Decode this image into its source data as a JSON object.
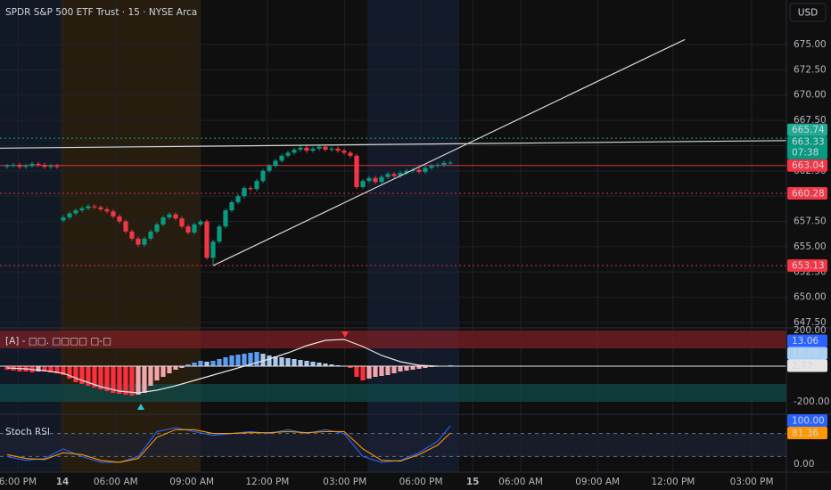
{
  "chart_data": [
    {
      "type": "candlestick",
      "title": "SPDR S&P 500 ETF Trust · 15 · NYSE Arca",
      "currency": "USD",
      "open": [
        662.9,
        663.0,
        663.1,
        662.9,
        663.0,
        663.2,
        663.1,
        662.9,
        663.0,
        657.6,
        657.9,
        658.3,
        658.6,
        658.8,
        659.0,
        658.9,
        658.7,
        658.5,
        658.0,
        657.5,
        656.5,
        655.8,
        655.2,
        655.8,
        656.5,
        657.2,
        657.9,
        658.2,
        657.8,
        657.0,
        656.4,
        657.2,
        657.5,
        653.9,
        655.5,
        657.0,
        658.6,
        659.4,
        660.0,
        660.8,
        660.7,
        661.5,
        662.5,
        663.0,
        663.5,
        664.0,
        664.3,
        664.6,
        664.8,
        664.5,
        664.7,
        664.9,
        664.6,
        664.7,
        664.5,
        664.3,
        664.0,
        660.9,
        661.5,
        661.8,
        661.4,
        661.9,
        662.2,
        662.0,
        662.3,
        662.5,
        662.6,
        662.4,
        662.8,
        663.0,
        663.1,
        663.3
      ],
      "high": [
        663.2,
        663.3,
        663.3,
        663.2,
        663.4,
        663.4,
        663.3,
        663.2,
        663.2,
        658.1,
        658.5,
        658.8,
        659.0,
        659.2,
        659.2,
        659.1,
        658.9,
        658.7,
        658.2,
        657.7,
        656.7,
        656.0,
        656.0,
        656.7,
        657.4,
        658.1,
        658.4,
        658.4,
        658.0,
        657.2,
        657.4,
        657.7,
        657.7,
        655.7,
        657.2,
        658.8,
        659.6,
        660.2,
        661.0,
        661.0,
        661.7,
        662.7,
        663.2,
        663.7,
        664.2,
        664.5,
        664.8,
        665.0,
        665.0,
        664.9,
        665.1,
        665.1,
        664.9,
        664.9,
        664.7,
        664.5,
        664.2,
        661.7,
        662.0,
        662.0,
        662.1,
        662.4,
        662.4,
        662.5,
        662.7,
        662.8,
        662.8,
        663.0,
        663.2,
        663.3,
        663.5,
        663.5
      ],
      "low": [
        662.7,
        662.8,
        662.7,
        662.7,
        662.8,
        662.9,
        662.7,
        662.7,
        662.7,
        657.4,
        657.7,
        658.1,
        658.4,
        658.6,
        658.7,
        658.5,
        658.3,
        657.8,
        657.3,
        656.3,
        655.6,
        655.0,
        655.0,
        655.6,
        656.3,
        657.0,
        657.7,
        657.6,
        656.8,
        656.2,
        656.2,
        657.0,
        653.7,
        653.13,
        655.3,
        656.8,
        658.4,
        659.2,
        659.8,
        660.5,
        660.5,
        661.3,
        662.3,
        662.8,
        663.3,
        663.8,
        664.1,
        664.4,
        664.3,
        664.3,
        664.5,
        664.4,
        664.4,
        664.3,
        664.1,
        663.8,
        660.7,
        660.7,
        661.3,
        661.2,
        661.2,
        661.7,
        661.8,
        661.8,
        662.1,
        662.3,
        662.2,
        662.2,
        662.6,
        662.8,
        662.9,
        663.1
      ],
      "close": [
        663.0,
        663.1,
        662.9,
        663.0,
        663.2,
        663.1,
        662.9,
        663.0,
        662.9,
        657.9,
        658.3,
        658.6,
        658.8,
        659.0,
        658.9,
        658.7,
        658.5,
        658.0,
        657.5,
        656.5,
        655.8,
        655.2,
        655.8,
        656.5,
        657.2,
        657.9,
        658.2,
        657.8,
        657.0,
        656.4,
        657.2,
        657.5,
        653.9,
        655.5,
        657.0,
        658.6,
        659.4,
        660.0,
        660.8,
        660.7,
        661.5,
        662.5,
        663.0,
        663.5,
        664.0,
        664.3,
        664.6,
        664.8,
        664.5,
        664.7,
        664.9,
        664.6,
        664.7,
        664.5,
        664.3,
        664.0,
        660.9,
        661.5,
        661.8,
        661.4,
        661.9,
        662.2,
        662.0,
        662.3,
        662.5,
        662.6,
        662.4,
        662.8,
        663.0,
        663.1,
        663.3,
        663.33
      ],
      "up_color": "#089981",
      "down_color": "#f23645",
      "xlim": [
        -1.14,
        124.86
      ],
      "xticks": [
        {
          "value": 1.7,
          "label": "6:00 PM"
        },
        {
          "value": 8.86,
          "label": "14"
        },
        {
          "value": 17.4,
          "label": "06:00 AM"
        },
        {
          "value": 29.6,
          "label": "09:00 AM"
        },
        {
          "value": 41.7,
          "label": "12:00 PM"
        },
        {
          "value": 54.1,
          "label": "03:00 PM"
        },
        {
          "value": 66.3,
          "label": "06:00 PM"
        },
        {
          "value": 74.6,
          "label": "15"
        },
        {
          "value": 82.3,
          "label": "06:00 AM"
        },
        {
          "value": 94.6,
          "label": "09:00 AM"
        },
        {
          "value": 106.7,
          "label": "12:00 PM"
        },
        {
          "value": 119.3,
          "label": "03:00 PM"
        }
      ],
      "ylim": [
        646.97,
        679.41
      ],
      "yticks": [
        {
          "value": 647.5,
          "label": "647.50"
        },
        {
          "value": 650,
          "label": "650.00"
        },
        {
          "value": 652.5,
          "label": "652.50"
        },
        {
          "value": 655,
          "label": "655.00"
        },
        {
          "value": 657.5,
          "label": "657.50"
        },
        {
          "value": 660,
          "label": "660.00"
        },
        {
          "value": 662.5,
          "label": "662.50"
        },
        {
          "value": 665,
          "label": "665.00"
        },
        {
          "value": 667.5,
          "label": "667.50"
        },
        {
          "value": 670,
          "label": "670.00"
        },
        {
          "value": 672.5,
          "label": "672.50"
        },
        {
          "value": 675,
          "label": "675.00"
        }
      ],
      "grid": true,
      "price_tags": [
        {
          "value": 653.13,
          "color": "#f23645",
          "line": "dotted"
        },
        {
          "value": 660.28,
          "color": "#f23645",
          "line": "dotted"
        },
        {
          "value": 663.04,
          "color": "#f23645",
          "line": "solid"
        },
        {
          "value": 663.33,
          "color": "#089981",
          "sub": "07:38"
        },
        {
          "value": 665.74,
          "color": "#22ab94",
          "line": "dotted"
        }
      ],
      "trendlines": [
        {
          "x": [
            33,
            108.6
          ],
          "y": [
            653.13,
            675.5
          ]
        },
        {
          "x": [
            -1.14,
            124.86
          ],
          "y": [
            664.75,
            665.5
          ]
        }
      ]
    },
    {
      "type": "macd",
      "title": "[A] - □□. □□□□ □-□",
      "histogram": [
        -20,
        -25,
        -30,
        -30,
        -35,
        -30,
        -30,
        -35,
        -40,
        -50,
        -70,
        -90,
        -100,
        -110,
        -120,
        -130,
        -140,
        -150,
        -155,
        -160,
        -165,
        -160,
        -150,
        -110,
        -80,
        -60,
        -40,
        -20,
        -10,
        10,
        20,
        30,
        25,
        30,
        40,
        50,
        60,
        65,
        70,
        75,
        80,
        70,
        60,
        55,
        50,
        45,
        40,
        35,
        30,
        25,
        20,
        15,
        10,
        5,
        0,
        -10,
        -60,
        -80,
        -70,
        -60,
        -55,
        -50,
        -40,
        -30,
        -25,
        -20,
        -15,
        -10,
        -5,
        -3,
        0,
        5
      ],
      "colors": {
        "rise_above": "#5b9cf0",
        "fall_above": "#a9c9f0",
        "fall_below": "#ff2e3b",
        "rise_below": "#f2a5ad"
      },
      "signal": {
        "x": [
          0,
          3,
          6,
          9,
          12,
          15,
          18,
          21,
          24,
          27,
          30,
          33,
          36,
          39,
          42,
          45,
          48,
          51,
          54,
          57,
          60,
          63,
          66,
          69
        ],
        "values": [
          -10,
          -15,
          -25,
          -40,
          -80,
          -115,
          -140,
          -150,
          -135,
          -110,
          -80,
          -50,
          -20,
          10,
          40,
          75,
          115,
          145,
          150,
          110,
          60,
          25,
          5,
          0
        ],
        "color": "#e6e6e6"
      },
      "ylim": [
        -270,
        215
      ],
      "yticks": [
        {
          "value": 200,
          "label": "200.00"
        },
        {
          "value": -200,
          "label": "-200.00"
        }
      ],
      "zones": [
        {
          "from": 100,
          "to": 200,
          "color": "#7a1f24"
        },
        {
          "from": -100,
          "to": -200,
          "color": "#0f4a4a"
        }
      ],
      "tags": [
        {
          "value": 2.77,
          "color": "#e6e6e6",
          "text_color": "#000000"
        },
        {
          "value": 10.29,
          "color": "#a9d0f5",
          "text_color": "#000000"
        },
        {
          "value": 13.06,
          "color": "#2962ff",
          "text_color": "#ffffff"
        }
      ]
    },
    {
      "type": "stoch_rsi",
      "title": "Stoch RSI",
      "x": [
        0,
        3,
        6,
        9,
        12,
        15,
        18,
        21,
        24,
        27,
        30,
        33,
        36,
        39,
        42,
        45,
        48,
        51,
        54,
        57,
        60,
        63,
        66,
        69,
        71
      ],
      "series": [
        {
          "color": "#2962ff",
          "values": [
            20,
            10,
            15,
            40,
            20,
            5,
            5,
            20,
            85,
            95,
            85,
            75,
            80,
            85,
            80,
            90,
            80,
            90,
            80,
            20,
            5,
            10,
            30,
            60,
            100
          ]
        },
        {
          "color": "#ff9800",
          "values": [
            25,
            15,
            12,
            30,
            25,
            10,
            5,
            15,
            70,
            90,
            90,
            80,
            80,
            82,
            82,
            85,
            82,
            85,
            85,
            40,
            10,
            8,
            25,
            50,
            81.36
          ]
        }
      ],
      "bands": [
        20,
        80
      ],
      "ylim": [
        -20.9,
        130.2
      ],
      "yticks": [
        {
          "value": 0,
          "label": "0.00"
        }
      ],
      "tags": [
        {
          "value": 81.36,
          "color": "#ff9800"
        },
        {
          "value": 100,
          "label": "100.00",
          "color": "#2962ff"
        }
      ]
    }
  ]
}
